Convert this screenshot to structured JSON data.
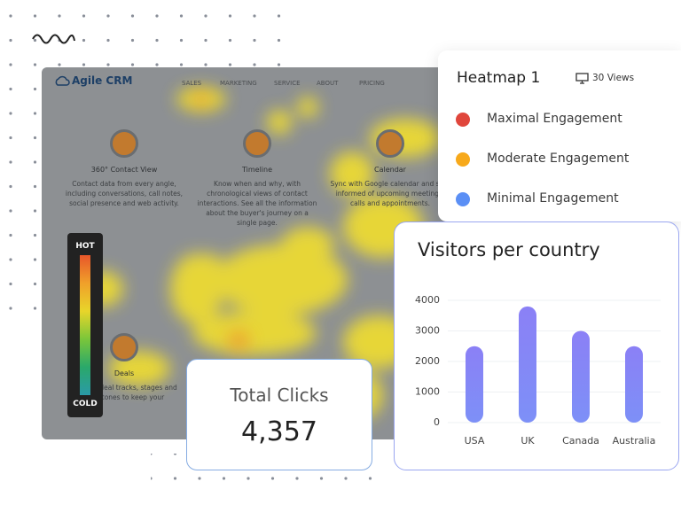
{
  "site": {
    "brand": "Agile CRM",
    "nav": [
      "SALES",
      "MARKETING",
      "SERVICE",
      "ABOUT",
      "PRICING"
    ],
    "features": [
      {
        "title": "360° Contact View",
        "desc": "Contact data from every angle, including conversations, call notes, social presence and web activity."
      },
      {
        "title": "Timeline",
        "desc": "Know when and why, with chronological views of contact interactions. See all the information about the buyer's journey on a single page."
      },
      {
        "title": "Calendar",
        "desc": "Sync with Google calendar and stay informed of upcoming meetings, calls and appointments."
      },
      {
        "title": "Deals",
        "desc": "Manage deal tracks, stages and milestones to keep your"
      }
    ]
  },
  "heat_scale": {
    "hot": "HOT",
    "cold": "COLD"
  },
  "heatmap_card": {
    "title": "Heatmap 1",
    "views": "30 Views",
    "legend": [
      {
        "label": "Maximal Engagement",
        "color": "#e0463c"
      },
      {
        "label": "Moderate Engagement",
        "color": "#f7a91b"
      },
      {
        "label": "Minimal Engagement",
        "color": "#5b8ff5"
      }
    ]
  },
  "total_clicks": {
    "label": "Total Clicks",
    "value": "4,357"
  },
  "chart_data": {
    "type": "bar",
    "title": "Visitors per country",
    "categories": [
      "USA",
      "UK",
      "Canada",
      "Australia"
    ],
    "values": [
      2500,
      3800,
      3000,
      2500
    ],
    "color": "#8b80f6",
    "ylim": [
      0,
      4000
    ],
    "yticks": [
      0,
      1000,
      2000,
      3000,
      4000
    ],
    "grid": true
  }
}
